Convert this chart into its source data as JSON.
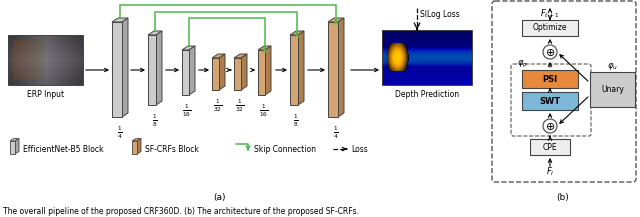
{
  "caption": "The overall pipeline of the proposed CRF360D. (b) The architecture of the proposed SF-CRFs.",
  "caption_a": "(a)",
  "caption_b": "(b)",
  "bg_color": "#ffffff",
  "gray_block_color": "#cccccc",
  "tan_block_color": "#d4a574",
  "green_color": "#4db84a",
  "black_color": "#000000",
  "blue_box_color": "#7db8d8",
  "orange_box_color": "#e8883a",
  "light_gray_box": "#d8d8d8",
  "erp_colors": [
    "#888888",
    "#aaaaaa",
    "#666666"
  ],
  "depth_cmap": "jet"
}
